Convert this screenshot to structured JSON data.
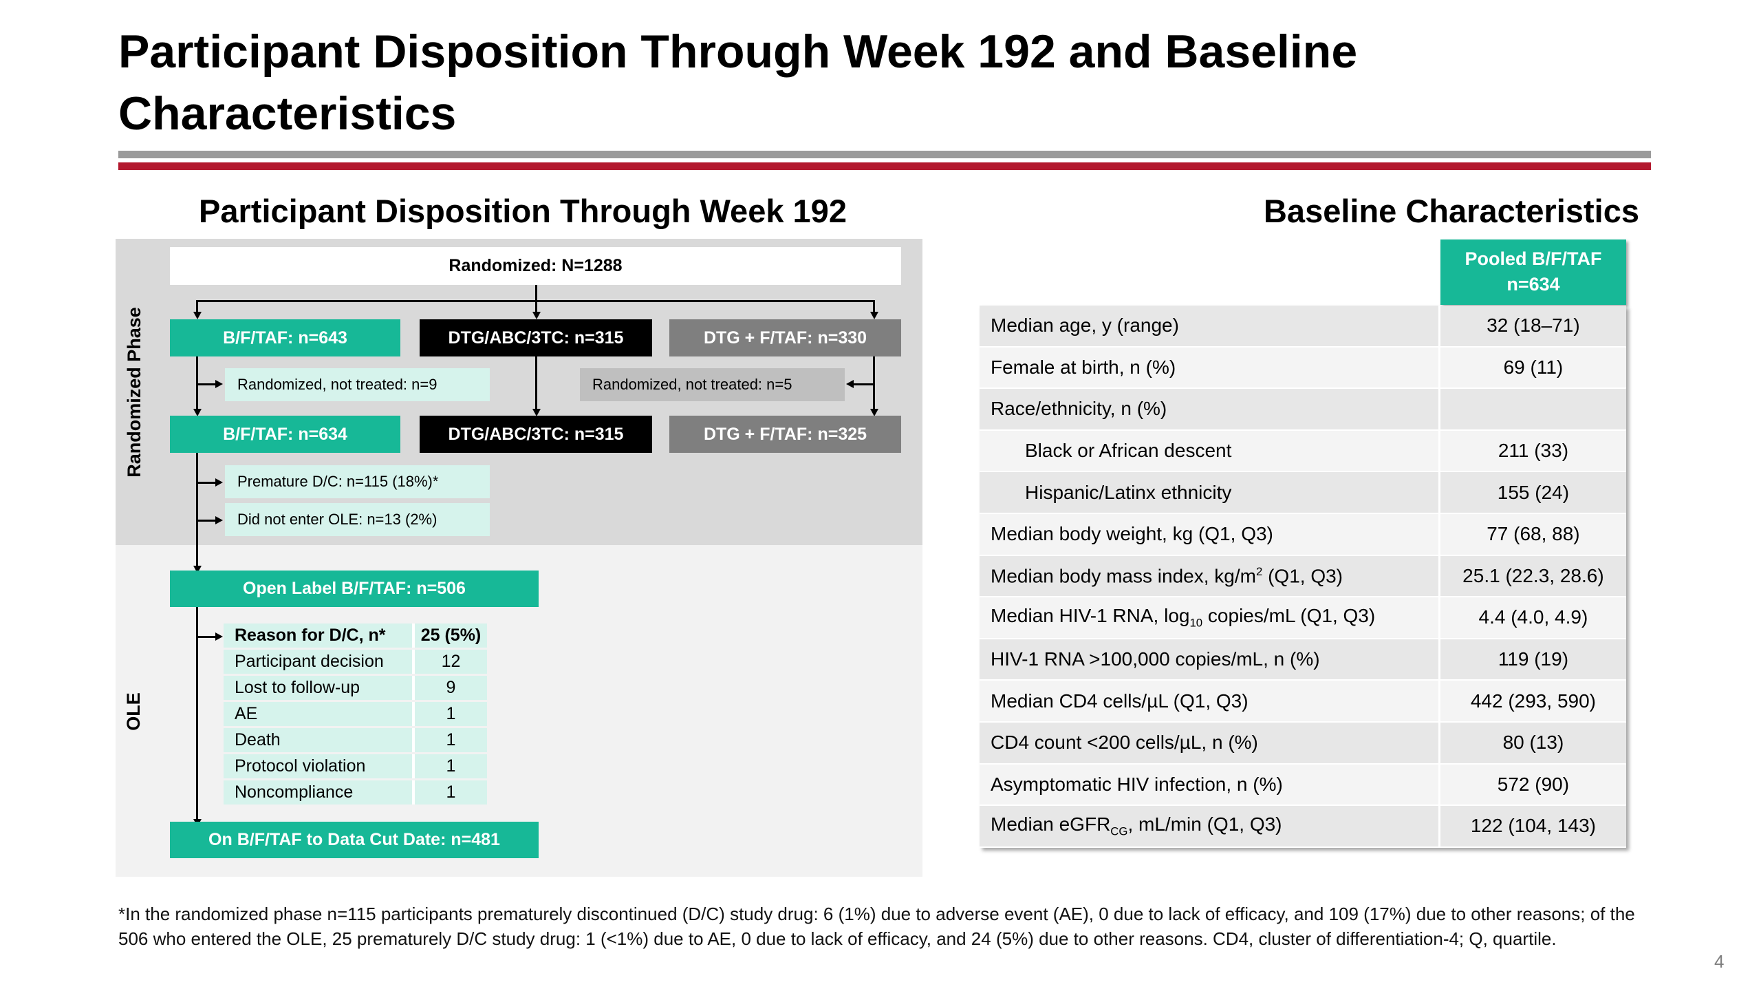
{
  "title": "Participant Disposition Through Week 192 and Baseline Characteristics",
  "disposition": {
    "title": "Participant Disposition Through Week 192",
    "phase_randomized": "Randomized Phase",
    "phase_ole": "OLE",
    "randomized": "Randomized: N=1288",
    "arm1_randomized": "B/F/TAF: n=643",
    "arm2_randomized": "DTG/ABC/3TC: n=315",
    "arm3_randomized": "DTG + F/TAF: n=330",
    "arm1_not_treated": "Randomized, not treated: n=9",
    "arm3_not_treated": "Randomized, not treated: n=5",
    "arm1_treated": "B/F/TAF: n=634",
    "arm2_treated": "DTG/ABC/3TC: n=315",
    "arm3_treated": "DTG + F/TAF: n=325",
    "premature_dc": "Premature D/C: n=115 (18%)*",
    "not_enter_ole": "Did not enter OLE: n=13 (2%)",
    "open_label": "Open Label B/F/TAF: n=506",
    "reasons_header": [
      "Reason for D/C, n*",
      "25 (5%)"
    ],
    "reasons": [
      [
        "Participant decision",
        "12"
      ],
      [
        "Lost to follow-up",
        "9"
      ],
      [
        "AE",
        "1"
      ],
      [
        "Death",
        "1"
      ],
      [
        "Protocol violation",
        "1"
      ],
      [
        "Noncompliance",
        "1"
      ]
    ],
    "data_cut": "On B/F/TAF to Data Cut Date: n=481"
  },
  "baseline": {
    "title": "Baseline Characteristics",
    "header_line1": "Pooled B/F/TAF",
    "header_line2": "n=634",
    "rows": [
      {
        "label": "Median age, y (range)",
        "value": "32 (18–71)"
      },
      {
        "label": "Female at birth, n (%)",
        "value": "69 (11)"
      },
      {
        "label": "Race/ethnicity, n (%)",
        "value": ""
      },
      {
        "label": "Black or African descent",
        "value": "211 (33)"
      },
      {
        "label": "Hispanic/Latinx ethnicity",
        "value": "155 (24)"
      },
      {
        "label": "Median body weight, kg (Q1, Q3)",
        "value": "77 (68, 88)"
      },
      {
        "label_pre": "Median body mass index, kg/m",
        "label_sup": "2",
        "label_post": " (Q1, Q3)",
        "value": "25.1 (22.3, 28.6)"
      },
      {
        "label_pre": "Median HIV-1 RNA, log",
        "label_sub": "10",
        "label_post": " copies/mL (Q1, Q3)",
        "value": "4.4 (4.0, 4.9)"
      },
      {
        "label": "HIV-1 RNA >100,000 copies/mL, n (%)",
        "value": "119 (19)"
      },
      {
        "label": "Median CD4 cells/µL (Q1, Q3)",
        "value": "442 (293, 590)"
      },
      {
        "label": "CD4 count <200 cells/µL, n (%)",
        "value": "80 (13)"
      },
      {
        "label": "Asymptomatic HIV infection, n (%)",
        "value": "572 (90)"
      },
      {
        "label_pre": "Median eGFR",
        "label_sub": "CG",
        "label_post": ", mL/min (Q1, Q3)",
        "value": "122 (104, 143)"
      }
    ]
  },
  "footnote": "*In the randomized phase n=115 participants prematurely discontinued (D/C) study drug: 6 (1%) due to adverse event (AE), 0 due to lack of efficacy, and 109 (17%) due to other reasons; of the 506 who entered the OLE, 25 prematurely D/C study drug: 1 (<1%) due to AE, 0 due to lack of efficacy, and 24 (5%) due to other reasons. CD4, cluster of differentiation-4; Q, quartile.",
  "page_number": "4",
  "colors": {
    "teal": "#17b897",
    "red_rule": "#b3182e",
    "gray_rule": "#9a9a9a"
  }
}
